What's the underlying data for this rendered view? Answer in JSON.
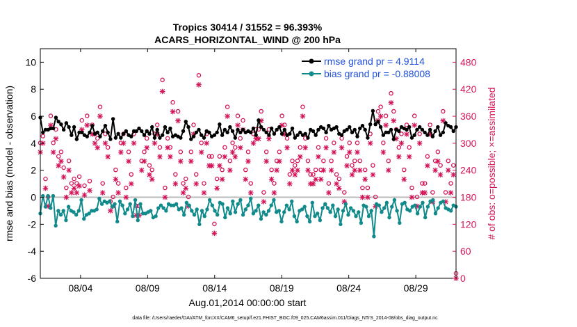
{
  "chart_data": {
    "type": "line",
    "title_line1": "Tropics 30414 / 31552 = 96.393%",
    "title_line2": "ACARS_HORIZONTAL_WIND @ 200 hPa",
    "xlabel": "Aug.01,2014 00:00:00 start",
    "ylabel_left": "rmse and bias (model - observation)",
    "ylabel_right": "# of obs: o=possible; ×=assimilated",
    "footnote": "data file: /Users/raeder/DAI/ATM_forcXX/CAM6_setup/f.e21.FHIST_BGC.f09_025.CAM6assim.011/Diags_NTrS_2014-08/obs_diag_output.nc",
    "xlim": [
      0,
      31
    ],
    "ylim_left": [
      -6,
      11
    ],
    "ylim_right": [
      0,
      510
    ],
    "xticks": [
      {
        "value": 3,
        "label": "08/04"
      },
      {
        "value": 8,
        "label": "08/09"
      },
      {
        "value": 13,
        "label": "08/14"
      },
      {
        "value": 18,
        "label": "08/19"
      },
      {
        "value": 23,
        "label": "08/24"
      },
      {
        "value": 28,
        "label": "08/29"
      }
    ],
    "yticks_left": [
      -6,
      -4,
      -2,
      0,
      2,
      4,
      6,
      8,
      10
    ],
    "yticks_right": [
      0,
      60,
      120,
      180,
      240,
      300,
      360,
      420,
      480
    ],
    "colors": {
      "rmse": "#000000",
      "bias": "#108a8a",
      "obs": "#d4145a",
      "legend_text": "#1f4fdc",
      "zero_line": "#bbbbbb"
    },
    "legend_position": "top-right",
    "series": [
      {
        "name": "rmse grand pr = 4.9114",
        "axis": "left",
        "values": [
          5.9,
          4.8,
          5.0,
          5.0,
          5.1,
          5.1,
          5.9,
          5.6,
          5.4,
          5.0,
          5.5,
          5.2,
          4.6,
          5.2,
          4.3,
          4.8,
          4.8,
          4.6,
          4.5,
          4.8,
          5.3,
          4.7,
          4.8,
          4.5,
          4.9,
          5.3,
          4.8,
          4.3,
          5.8,
          4.4,
          4.7,
          4.4,
          4.7,
          4.9,
          4.6,
          4.5,
          4.9,
          4.9,
          5.1,
          4.9,
          4.6,
          4.9,
          4.7,
          5.2,
          4.4,
          5.0,
          4.4,
          4.6,
          5.2,
          4.8,
          5.1,
          4.5,
          4.6,
          4.5,
          4.4,
          4.9,
          5.6,
          5.2,
          4.3,
          4.5,
          4.8,
          5.0,
          4.6,
          4.4,
          4.9,
          4.8,
          4.5,
          4.6,
          4.8,
          5.4,
          4.6,
          5.0,
          4.8,
          5.2,
          4.9,
          4.4,
          5.0,
          4.8,
          5.0,
          4.8,
          4.9,
          4.8,
          5.1,
          4.6,
          5.7,
          5.2,
          5.0,
          4.8,
          4.6,
          5.1,
          4.7,
          5.0,
          5.2,
          4.7,
          5.0,
          4.6,
          4.7,
          5.1,
          4.4,
          4.6,
          4.8,
          4.6,
          4.7,
          4.4,
          5.0,
          4.9,
          4.6,
          5.0,
          5.2,
          5.1,
          4.8,
          5.3,
          5.0,
          5.1,
          5.2,
          4.7,
          4.6,
          4.9,
          5.0,
          5.2,
          4.8,
          5.0,
          4.5,
          5.1,
          5.3,
          5.0,
          4.4,
          5.4,
          6.4,
          5.4,
          5.6,
          5.2,
          4.6,
          4.8,
          4.8,
          5.0,
          4.3,
          5.0,
          4.9,
          5.2,
          5.1,
          5.0,
          5.2,
          4.4,
          4.6,
          5.0,
          5.2,
          5.0,
          4.8,
          4.6,
          5.0,
          4.5,
          4.9,
          5.2,
          4.6,
          4.8,
          5.5,
          5.3,
          5.2,
          4.9,
          5.2
        ]
      },
      {
        "name": "bias grand pr = -0.88008",
        "axis": "left",
        "values": [
          -1.2,
          0.1,
          -0.7,
          0.1,
          -0.8,
          0.1,
          -2.1,
          -1.0,
          -1.3,
          -1.0,
          -1.7,
          -0.7,
          -1.0,
          -1.1,
          -1.3,
          -1.0,
          -0.2,
          -1.6,
          -1.3,
          -1.2,
          -1.0,
          -1.0,
          -0.9,
          -0.1,
          -0.5,
          -0.3,
          -0.4,
          -0.3,
          -0.7,
          -0.5,
          -1.8,
          -0.3,
          -0.6,
          -1.2,
          -0.9,
          -0.5,
          -1.4,
          -0.2,
          -1.7,
          -0.5,
          -1.2,
          -1.2,
          -1.1,
          -1.0,
          -1.5,
          -1.4,
          -0.8,
          -0.6,
          -0.8,
          -1.0,
          -0.5,
          -0.6,
          -0.6,
          -0.5,
          -0.9,
          -0.8,
          -1.3,
          -0.4,
          -0.6,
          -1.0,
          -1.3,
          -0.9,
          -2.0,
          -1.0,
          -1.4,
          -0.9,
          -0.2,
          -0.6,
          -1.0,
          -1.3,
          -0.4,
          -0.5,
          -1.5,
          -0.8,
          -1.2,
          -0.3,
          -1.1,
          -0.5,
          -0.2,
          -1.3,
          -0.9,
          -0.6,
          -0.1,
          -1.2,
          -1.0,
          -0.6,
          -1.6,
          -1.1,
          -1.3,
          -1.0,
          -0.6,
          -0.2,
          -1.1,
          -1.0,
          -1.8,
          -1.1,
          -0.6,
          -0.9,
          -0.3,
          -1.4,
          -1.8,
          -1.0,
          -0.9,
          -0.7,
          -1.4,
          -1.8,
          -0.4,
          -1.4,
          -1.2,
          -1.7,
          -0.8,
          -0.5,
          -0.8,
          -1.1,
          -0.6,
          -1.4,
          -0.9,
          -2.0,
          -1.0,
          -0.5,
          -1.3,
          -0.8,
          -1.0,
          -1.4,
          -1.1,
          -1.9,
          -0.6,
          -0.7,
          -1.4,
          -1.0,
          -2.9,
          -0.5,
          -0.6,
          -1.1,
          -0.8,
          -0.4,
          -1.5,
          -0.7,
          -0.2,
          -1.0,
          -1.9,
          -0.5,
          -0.4,
          -0.9,
          -1.0,
          -0.7,
          -0.6,
          -1.2,
          -0.7,
          -0.4,
          -1.5,
          -0.7,
          -0.3,
          -0.2,
          -1.2,
          -0.8,
          -0.4,
          -0.3,
          -0.8,
          -0.9,
          -1.0,
          -0.6,
          -0.7
        ]
      },
      {
        "name": "possible",
        "axis": "right",
        "marker": "o",
        "values": [
          290,
          305,
          210,
          170,
          350,
          290,
          320,
          260,
          270,
          235,
          190,
          250,
          200,
          210,
          200,
          215,
          340,
          195,
          350,
          205,
          330,
          310,
          300,
          370,
          200,
          310,
          280,
          160,
          170,
          230,
          200,
          290,
          310,
          190,
          270,
          220,
          310,
          150,
          150,
          250,
          270,
          300,
          240,
          230,
          310,
          330,
          280,
          430,
          190,
          300,
          280,
          380,
          220,
          360,
          270,
          200,
          210,
          170,
          270,
          330,
          220,
          440,
          290,
          200,
          310,
          260,
          260,
          110,
          210,
          260,
          230,
          280,
          370,
          250,
          290,
          280,
          350,
          300,
          340,
          230,
          270,
          200,
          310,
          320,
          320,
          360,
          180,
          270,
          320,
          230,
          200,
          250,
          270,
          350,
          330,
          300,
          220,
          250,
          240,
          250,
          280,
          370,
          300,
          250,
          220,
          220,
          230,
          280,
          230,
          250,
          300,
          200,
          250,
          290,
          220,
          210,
          300,
          180,
          260,
          290,
          240,
          250,
          290,
          250,
          190,
          230,
          190,
          310,
          240,
          170,
          360,
          370,
          290,
          350,
          250,
          400,
          360,
          320,
          280,
          310,
          230,
          330,
          280,
          190,
          350,
          170,
          310,
          200,
          200,
          260,
          330,
          180,
          250,
          270,
          240,
          360,
          180,
          250,
          200,
          240,
          0
        ]
      },
      {
        "name": "assimilated",
        "axis": "right",
        "marker": "x",
        "values": [
          280,
          300,
          200,
          160,
          340,
          280,
          310,
          250,
          260,
          225,
          180,
          240,
          190,
          200,
          190,
          205,
          330,
          185,
          340,
          195,
          320,
          300,
          290,
          360,
          190,
          300,
          270,
          150,
          160,
          220,
          190,
          280,
          300,
          180,
          260,
          210,
          300,
          140,
          140,
          240,
          260,
          290,
          230,
          220,
          300,
          320,
          270,
          415,
          180,
          290,
          270,
          370,
          210,
          350,
          260,
          190,
          200,
          160,
          260,
          320,
          210,
          430,
          280,
          190,
          300,
          250,
          250,
          100,
          200,
          250,
          220,
          270,
          360,
          240,
          280,
          270,
          340,
          290,
          330,
          220,
          260,
          190,
          300,
          310,
          310,
          350,
          170,
          260,
          310,
          220,
          190,
          240,
          260,
          340,
          320,
          290,
          210,
          240,
          230,
          240,
          270,
          360,
          290,
          240,
          210,
          210,
          220,
          270,
          220,
          240,
          290,
          190,
          240,
          280,
          210,
          200,
          290,
          170,
          250,
          280,
          230,
          240,
          280,
          240,
          180,
          220,
          180,
          300,
          230,
          160,
          350,
          360,
          280,
          340,
          240,
          390,
          350,
          310,
          270,
          300,
          220,
          320,
          270,
          180,
          340,
          160,
          300,
          190,
          190,
          250,
          320,
          170,
          240,
          260,
          230,
          350,
          170,
          240,
          190,
          230,
          0
        ]
      }
    ]
  }
}
